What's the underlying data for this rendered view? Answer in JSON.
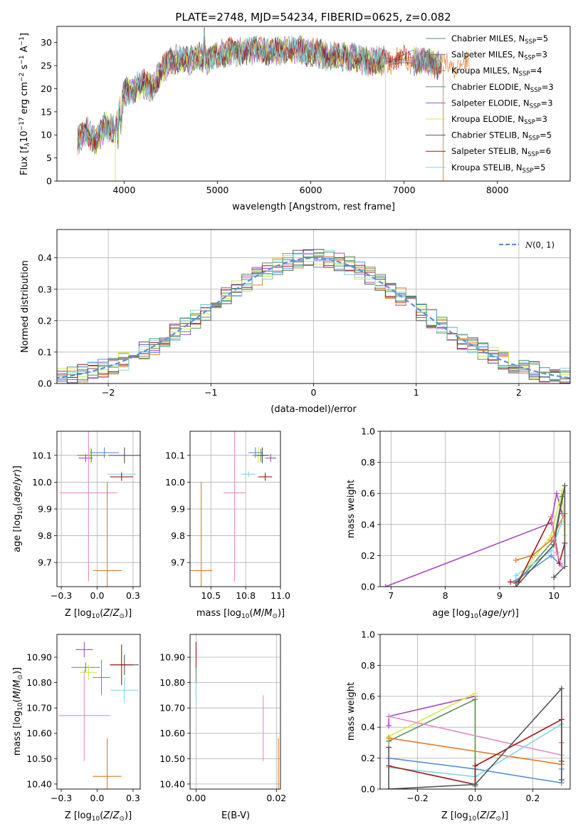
{
  "title": "PLATE=2748, MJD=54234, FIBERID=0625, z=0.082",
  "colors": {
    "c0": "#4a9a6a",
    "c1": "#9b2fae",
    "c2": "#e07b28",
    "c3": "#7ca8a0",
    "c4": "#a64bc0",
    "c5": "#d4e84a",
    "c6": "#555555",
    "c7": "#a01818",
    "c8": "#7fd8e0",
    "c9": "#e68cc4",
    "c10": "#5b8fdc",
    "c11": "#5f8f5f"
  },
  "chart_data": [
    {
      "id": "spectrum",
      "type": "line",
      "xlabel": "wavelength [Angstrom, rest frame]",
      "ylabel": "Flux [f_λ10^-17 erg cm^-2 s^-1 A^-1]",
      "xlim": [
        3280,
        8780
      ],
      "ylim": [
        0,
        33.5
      ],
      "xticks": [
        4000,
        5000,
        6000,
        7000,
        8000
      ],
      "yticks": [
        0,
        5,
        10,
        15,
        20,
        25,
        30
      ],
      "legend": "upper right",
      "series": [
        {
          "name": "Chabrier MILES, N_SSP=5",
          "color": "#4a9a6a"
        },
        {
          "name": "Salpeter MILES, N_SSP=3",
          "color": "#8a6a9a"
        },
        {
          "name": "Kroupa MILES, N_SSP=4",
          "color": "#e07b28"
        },
        {
          "name": "Chabrier ELODIE, N_SSP=3",
          "color": "#5f8f7f"
        },
        {
          "name": "Salpeter ELODIE, N_SSP=3",
          "color": "#a64bc0"
        },
        {
          "name": "Kroupa ELODIE, N_SSP=3",
          "color": "#d4e84a"
        },
        {
          "name": "Chabrier STELIB, N_SSP=5",
          "color": "#555555"
        },
        {
          "name": "Salpeter STELIB, N_SSP=6",
          "color": "#a01818"
        },
        {
          "name": "Kroupa STELIB, N_SSP=5",
          "color": "#7fd8e0"
        }
      ],
      "envelope": {
        "x": [
          3500,
          3600,
          3700,
          3800,
          3900,
          4000,
          4100,
          4200,
          4300,
          4400,
          4500,
          4600,
          4700,
          4800,
          4900,
          5000,
          5200,
          5400,
          5600,
          5800,
          6000,
          6200,
          6400,
          6600,
          6800,
          7000,
          7200,
          7400
        ],
        "y": [
          9,
          11,
          8.5,
          12,
          11,
          19,
          20,
          21,
          20,
          24,
          26,
          26.5,
          26,
          27,
          26,
          27.5,
          28,
          28.5,
          28,
          28.5,
          28,
          27,
          27,
          26,
          26,
          26.5,
          26,
          25
        ]
      }
    },
    {
      "id": "residuals",
      "type": "histogram",
      "xlabel": "(data-model)/error",
      "ylabel": "Normed distribution",
      "xlim": [
        -2.5,
        2.5
      ],
      "ylim": [
        0,
        0.49
      ],
      "xticks": [
        -2,
        -1,
        0,
        1,
        2
      ],
      "yticks": [
        0.0,
        0.1,
        0.2,
        0.3,
        0.4
      ],
      "legend": "upper right",
      "reference": {
        "name": "N(0,1)",
        "color": "#5b8fdc"
      },
      "bin_width": 0.1
    },
    {
      "id": "age_vs_Z",
      "type": "scatter",
      "xlabel": "Z [log10(Z/Z⊙)]",
      "ylabel": "age [log10(age/yr)]",
      "xlim": [
        -0.28,
        0.3
      ],
      "ylim": [
        9.61,
        10.19
      ],
      "xticks": [
        -0.25,
        0.0,
        0.25
      ],
      "yticks": [
        9.7,
        9.8,
        9.9,
        10.0,
        10.1
      ],
      "points": [
        {
          "x": -0.05,
          "y": 10.1,
          "xerr": 0.08,
          "yerr": 0.03,
          "color": "#d4e84a"
        },
        {
          "x": -0.04,
          "y": 10.1,
          "xerr": 0.1,
          "yerr": 0.025,
          "color": "#5f8f5f"
        },
        {
          "x": -0.08,
          "y": 10.09,
          "xerr": 0.05,
          "yerr": 0.015,
          "color": "#a64bc0"
        },
        {
          "x": 0.05,
          "y": 10.11,
          "xerr": 0.1,
          "yerr": 0.02,
          "color": "#5b8fdc"
        },
        {
          "x": 0.19,
          "y": 10.1,
          "xerr": 0.11,
          "yerr": 0.03,
          "color": "#555555"
        },
        {
          "x": 0.17,
          "y": 10.03,
          "xerr": 0.1,
          "yerr": 0.01,
          "color": "#7fd8e0"
        },
        {
          "x": 0.17,
          "y": 10.02,
          "xerr": 0.08,
          "yerr": 0.015,
          "color": "#a01818"
        },
        {
          "x": -0.06,
          "y": 9.96,
          "xerr": 0.2,
          "yerr": 0.33,
          "color": "#e68cc4"
        },
        {
          "x": 0.07,
          "y": 9.67,
          "xerr": 0.1,
          "yerr": 0.33,
          "color": "#e07b28"
        }
      ]
    },
    {
      "id": "age_vs_mass",
      "type": "scatter",
      "xlabel": "mass [log10(M/M⊙)]",
      "ylabel": "",
      "xlim": [
        10.35,
        11.0
      ],
      "ylim": [
        9.61,
        10.19
      ],
      "xticks": [
        10.5,
        10.75,
        11.0
      ],
      "yticks": [
        9.7,
        9.8,
        9.9,
        10.0,
        10.1
      ],
      "points": [
        {
          "x": 10.84,
          "y": 10.1,
          "xerr": 0.05,
          "yerr": 0.03,
          "color": "#d4e84a"
        },
        {
          "x": 10.86,
          "y": 10.1,
          "xerr": 0.06,
          "yerr": 0.025,
          "color": "#5f8f5f"
        },
        {
          "x": 10.93,
          "y": 10.09,
          "xerr": 0.04,
          "yerr": 0.015,
          "color": "#a64bc0"
        },
        {
          "x": 10.82,
          "y": 10.11,
          "xerr": 0.05,
          "yerr": 0.02,
          "color": "#5b8fdc"
        },
        {
          "x": 10.87,
          "y": 10.1,
          "xerr": 0.04,
          "yerr": 0.03,
          "color": "#555555"
        },
        {
          "x": 10.77,
          "y": 10.03,
          "xerr": 0.05,
          "yerr": 0.01,
          "color": "#7fd8e0"
        },
        {
          "x": 10.89,
          "y": 10.02,
          "xerr": 0.05,
          "yerr": 0.015,
          "color": "#a01818"
        },
        {
          "x": 10.67,
          "y": 9.96,
          "xerr": 0.08,
          "yerr": 0.33,
          "color": "#e68cc4"
        },
        {
          "x": 10.43,
          "y": 9.67,
          "xerr": 0.08,
          "yerr": 0.33,
          "color": "#e07b28"
        }
      ]
    },
    {
      "id": "weight_vs_age",
      "type": "line",
      "xlabel": "age [log10(age/yr)]",
      "ylabel": "mass weight",
      "xlim": [
        6.8,
        10.3
      ],
      "ylim": [
        0,
        1.0
      ],
      "xticks": [
        7,
        8,
        9,
        10
      ],
      "yticks": [
        0.0,
        0.2,
        0.4,
        0.6,
        0.8,
        1.0
      ],
      "series": [
        {
          "color": "#a64bc0",
          "x": [
            6.9,
            9.95,
            10.05,
            10.15
          ],
          "y": [
            0.0,
            0.41,
            0.6,
            0.47
          ]
        },
        {
          "color": "#d4e84a",
          "x": [
            9.3,
            9.95,
            10.15,
            10.2
          ],
          "y": [
            0.03,
            0.33,
            0.62,
            0.33
          ]
        },
        {
          "color": "#5f8f5f",
          "x": [
            9.3,
            10.0,
            10.15
          ],
          "y": [
            0.02,
            0.3,
            0.58
          ]
        },
        {
          "color": "#e07b28",
          "x": [
            9.3,
            9.6,
            9.95,
            10.2
          ],
          "y": [
            0.17,
            0.2,
            0.3,
            0.47
          ]
        },
        {
          "color": "#5b8fdc",
          "x": [
            9.3,
            9.95,
            10.15
          ],
          "y": [
            0.04,
            0.2,
            0.13
          ]
        },
        {
          "color": "#7fd8e0",
          "x": [
            9.3,
            9.95,
            10.15
          ],
          "y": [
            0.07,
            0.23,
            0.42
          ]
        },
        {
          "color": "#a01818",
          "x": [
            9.2,
            9.35,
            9.95,
            10.1,
            10.2
          ],
          "y": [
            0.03,
            0.03,
            0.45,
            0.15,
            0.28
          ]
        },
        {
          "color": "#555555",
          "x": [
            9.3,
            10.0,
            10.2,
            10.2,
            10.0
          ],
          "y": [
            0.0,
            0.27,
            0.65,
            0.13,
            0.06
          ]
        },
        {
          "color": "#e68cc4",
          "x": [
            9.95,
            10.05,
            10.15
          ],
          "y": [
            0.45,
            0.22,
            0.13
          ]
        }
      ]
    },
    {
      "id": "mass_vs_Z",
      "type": "scatter",
      "xlabel": "Z [log10(Z/Z⊙)]",
      "ylabel": "mass [log10(M/M⊙)]",
      "xlim": [
        -0.28,
        0.3
      ],
      "ylim": [
        10.38,
        10.99
      ],
      "xticks": [
        -0.25,
        0.0,
        0.25
      ],
      "yticks": [
        10.4,
        10.5,
        10.6,
        10.7,
        10.8,
        10.9
      ],
      "points": [
        {
          "x": -0.09,
          "y": 10.93,
          "xerr": 0.06,
          "yerr": 0.03,
          "color": "#a64bc0"
        },
        {
          "x": -0.08,
          "y": 10.86,
          "xerr": 0.1,
          "yerr": 0.02,
          "color": "#5f8f5f"
        },
        {
          "x": -0.06,
          "y": 10.84,
          "xerr": 0.06,
          "yerr": 0.03,
          "color": "#d4e84a"
        },
        {
          "x": 0.03,
          "y": 10.82,
          "xerr": 0.06,
          "yerr": 0.07,
          "color": "#5b8fdc"
        },
        {
          "x": 0.19,
          "y": 10.87,
          "xerr": 0.1,
          "yerr": 0.04,
          "color": "#555555"
        },
        {
          "x": 0.17,
          "y": 10.87,
          "xerr": 0.08,
          "yerr": 0.08,
          "color": "#a01818"
        },
        {
          "x": 0.19,
          "y": 10.77,
          "xerr": 0.1,
          "yerr": 0.05,
          "color": "#7fd8e0"
        },
        {
          "x": -0.09,
          "y": 10.67,
          "xerr": 0.18,
          "yerr": 0.18,
          "color": "#e68cc4"
        },
        {
          "x": 0.07,
          "y": 10.43,
          "xerr": 0.1,
          "yerr": 0.15,
          "color": "#e07b28"
        }
      ]
    },
    {
      "id": "mass_vs_EBV",
      "type": "scatter",
      "xlabel": "E(B-V)",
      "ylabel": "",
      "xlim": [
        -0.0015,
        0.021
      ],
      "ylim": [
        10.38,
        10.99
      ],
      "xticks": [
        0.0,
        0.02
      ],
      "yticks": [
        10.4,
        10.5,
        10.6,
        10.7,
        10.8,
        10.9
      ],
      "points": [
        {
          "x": 0.0,
          "y": 10.93,
          "xerr": 0,
          "yerr": 0.03,
          "color": "#a64bc0"
        },
        {
          "x": 0.0,
          "y": 10.9,
          "xerr": 0,
          "yerr": 0.06,
          "color": "#a01818"
        },
        {
          "x": 0.0,
          "y": 10.8,
          "xerr": 0,
          "yerr": 0.06,
          "color": "#5f8f5f"
        },
        {
          "x": 0.0,
          "y": 10.76,
          "xerr": 0,
          "yerr": 0.04,
          "color": "#7fd8e0"
        },
        {
          "x": 0.0167,
          "y": 10.62,
          "xerr": 0,
          "yerr": 0.13,
          "color": "#e68cc4"
        },
        {
          "x": 0.0205,
          "y": 10.48,
          "xerr": 0,
          "yerr": 0.1,
          "color": "#e07b28"
        }
      ]
    },
    {
      "id": "weight_vs_Z",
      "type": "line",
      "xlabel": "Z [log10(Z/Z⊙)]",
      "ylabel": "mass weight",
      "xlim": [
        -0.33,
        0.33
      ],
      "ylim": [
        0,
        1.0
      ],
      "xticks": [
        -0.2,
        0.0,
        0.2
      ],
      "yticks": [
        0.0,
        0.2,
        0.4,
        0.6,
        0.8,
        1.0
      ],
      "series": [
        {
          "color": "#a64bc0",
          "x": [
            -0.3,
            -0.3,
            0.0
          ],
          "y": [
            0.41,
            0.47,
            0.6
          ]
        },
        {
          "color": "#d4e84a",
          "x": [
            -0.3,
            0.0,
            0.0
          ],
          "y": [
            0.34,
            0.62,
            0.03
          ]
        },
        {
          "color": "#5f8f5f",
          "x": [
            -0.3,
            0.0,
            0.0
          ],
          "y": [
            0.31,
            0.58,
            0.02
          ]
        },
        {
          "color": "#e68cc4",
          "x": [
            -0.3,
            0.3
          ],
          "y": [
            0.47,
            0.22
          ]
        },
        {
          "color": "#e07b28",
          "x": [
            -0.3,
            0.3,
            0.3
          ],
          "y": [
            0.33,
            0.16,
            0.3
          ]
        },
        {
          "color": "#5b8fdc",
          "x": [
            -0.3,
            0.0,
            0.3,
            0.3
          ],
          "y": [
            0.2,
            0.13,
            0.04,
            0.13
          ]
        },
        {
          "color": "#7fd8e0",
          "x": [
            -0.3,
            0.0,
            0.3,
            0.3
          ],
          "y": [
            0.14,
            0.08,
            0.42,
            0.22
          ]
        },
        {
          "color": "#a01818",
          "x": [
            -0.3,
            0.0,
            0.0,
            0.3,
            0.3
          ],
          "y": [
            0.15,
            0.03,
            0.15,
            0.45,
            0.18
          ]
        },
        {
          "color": "#555555",
          "x": [
            -0.3,
            -0.3,
            0.0,
            0.3,
            0.3
          ],
          "y": [
            0.27,
            0.0,
            0.03,
            0.65,
            0.06
          ]
        }
      ]
    }
  ]
}
